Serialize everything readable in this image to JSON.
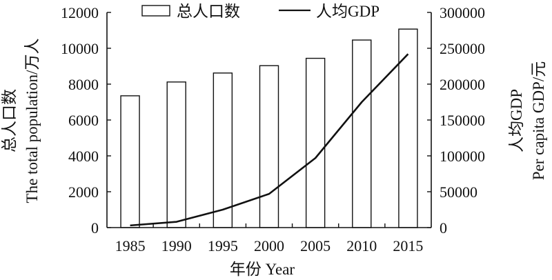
{
  "chart_data": {
    "type": "bar+line",
    "categories": [
      "1985",
      "1990",
      "1995",
      "2000",
      "2005",
      "2010",
      "2015"
    ],
    "xlabel": "年份 Year",
    "series": [
      {
        "name": "总人口数",
        "type": "bar",
        "axis": "left",
        "values": [
          7350,
          8120,
          8620,
          9030,
          9440,
          10460,
          11070
        ]
      },
      {
        "name": "人均GDP",
        "type": "line",
        "axis": "right",
        "values": [
          3000,
          8000,
          25000,
          47000,
          97000,
          175000,
          242000
        ]
      }
    ],
    "y_left": {
      "label_line1": "总人口数",
      "label_line2": "The total population/万人",
      "lim": [
        0,
        12000
      ],
      "ticks": [
        "0",
        "2000",
        "4000",
        "6000",
        "8000",
        "10000",
        "12000"
      ]
    },
    "y_right": {
      "label_line1": "人均GDP",
      "label_line2": "Per capita GDP/元",
      "lim": [
        0,
        300000
      ],
      "ticks": [
        "0",
        "50000",
        "100000",
        "150000",
        "200000",
        "250000",
        "300000"
      ]
    },
    "legend_position": "top",
    "grid": false
  }
}
